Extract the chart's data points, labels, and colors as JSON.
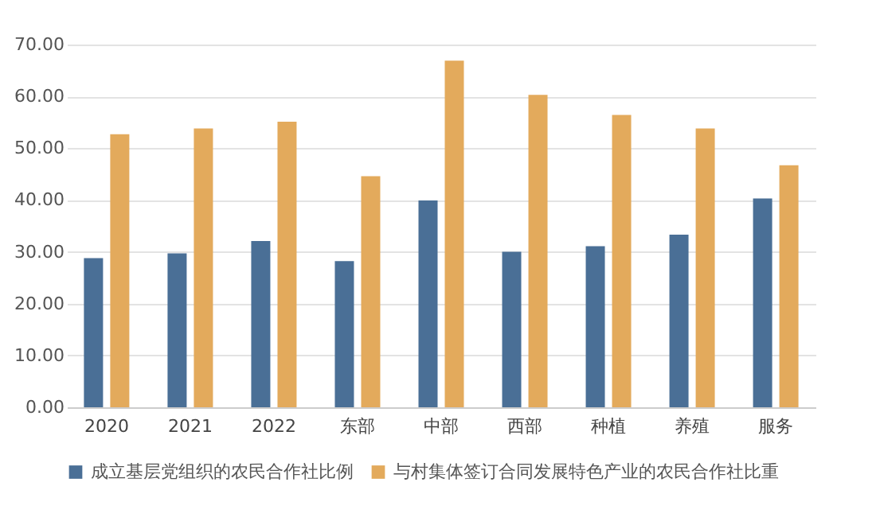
{
  "chart_data": {
    "type": "bar",
    "categories": [
      "2020",
      "2021",
      "2022",
      "东部",
      "中部",
      "西部",
      "种植",
      "养殖",
      "服务"
    ],
    "series": [
      {
        "name": "成立基层党组织的农民合作社比例",
        "color": "#4a6f96",
        "values": [
          28.8,
          29.7,
          32.1,
          28.2,
          39.9,
          30.0,
          31.1,
          33.3,
          40.3
        ]
      },
      {
        "name": "与村集体签订合同发展特色产业的农民合作社比重",
        "color": "#e3aa5c",
        "values": [
          52.7,
          53.8,
          55.1,
          44.6,
          66.9,
          60.3,
          56.4,
          53.8,
          46.7
        ]
      }
    ],
    "ylim": [
      0,
      70
    ],
    "yticks": [
      {
        "value": 0,
        "label": "0.00"
      },
      {
        "value": 10,
        "label": "10.00"
      },
      {
        "value": 20,
        "label": "20.00"
      },
      {
        "value": 30,
        "label": "30.00"
      },
      {
        "value": 40,
        "label": "40.00"
      },
      {
        "value": 50,
        "label": "50.00"
      },
      {
        "value": 60,
        "label": "60.00"
      },
      {
        "value": 70,
        "label": "70.00"
      }
    ],
    "grid": "y",
    "legend": "bottom"
  }
}
